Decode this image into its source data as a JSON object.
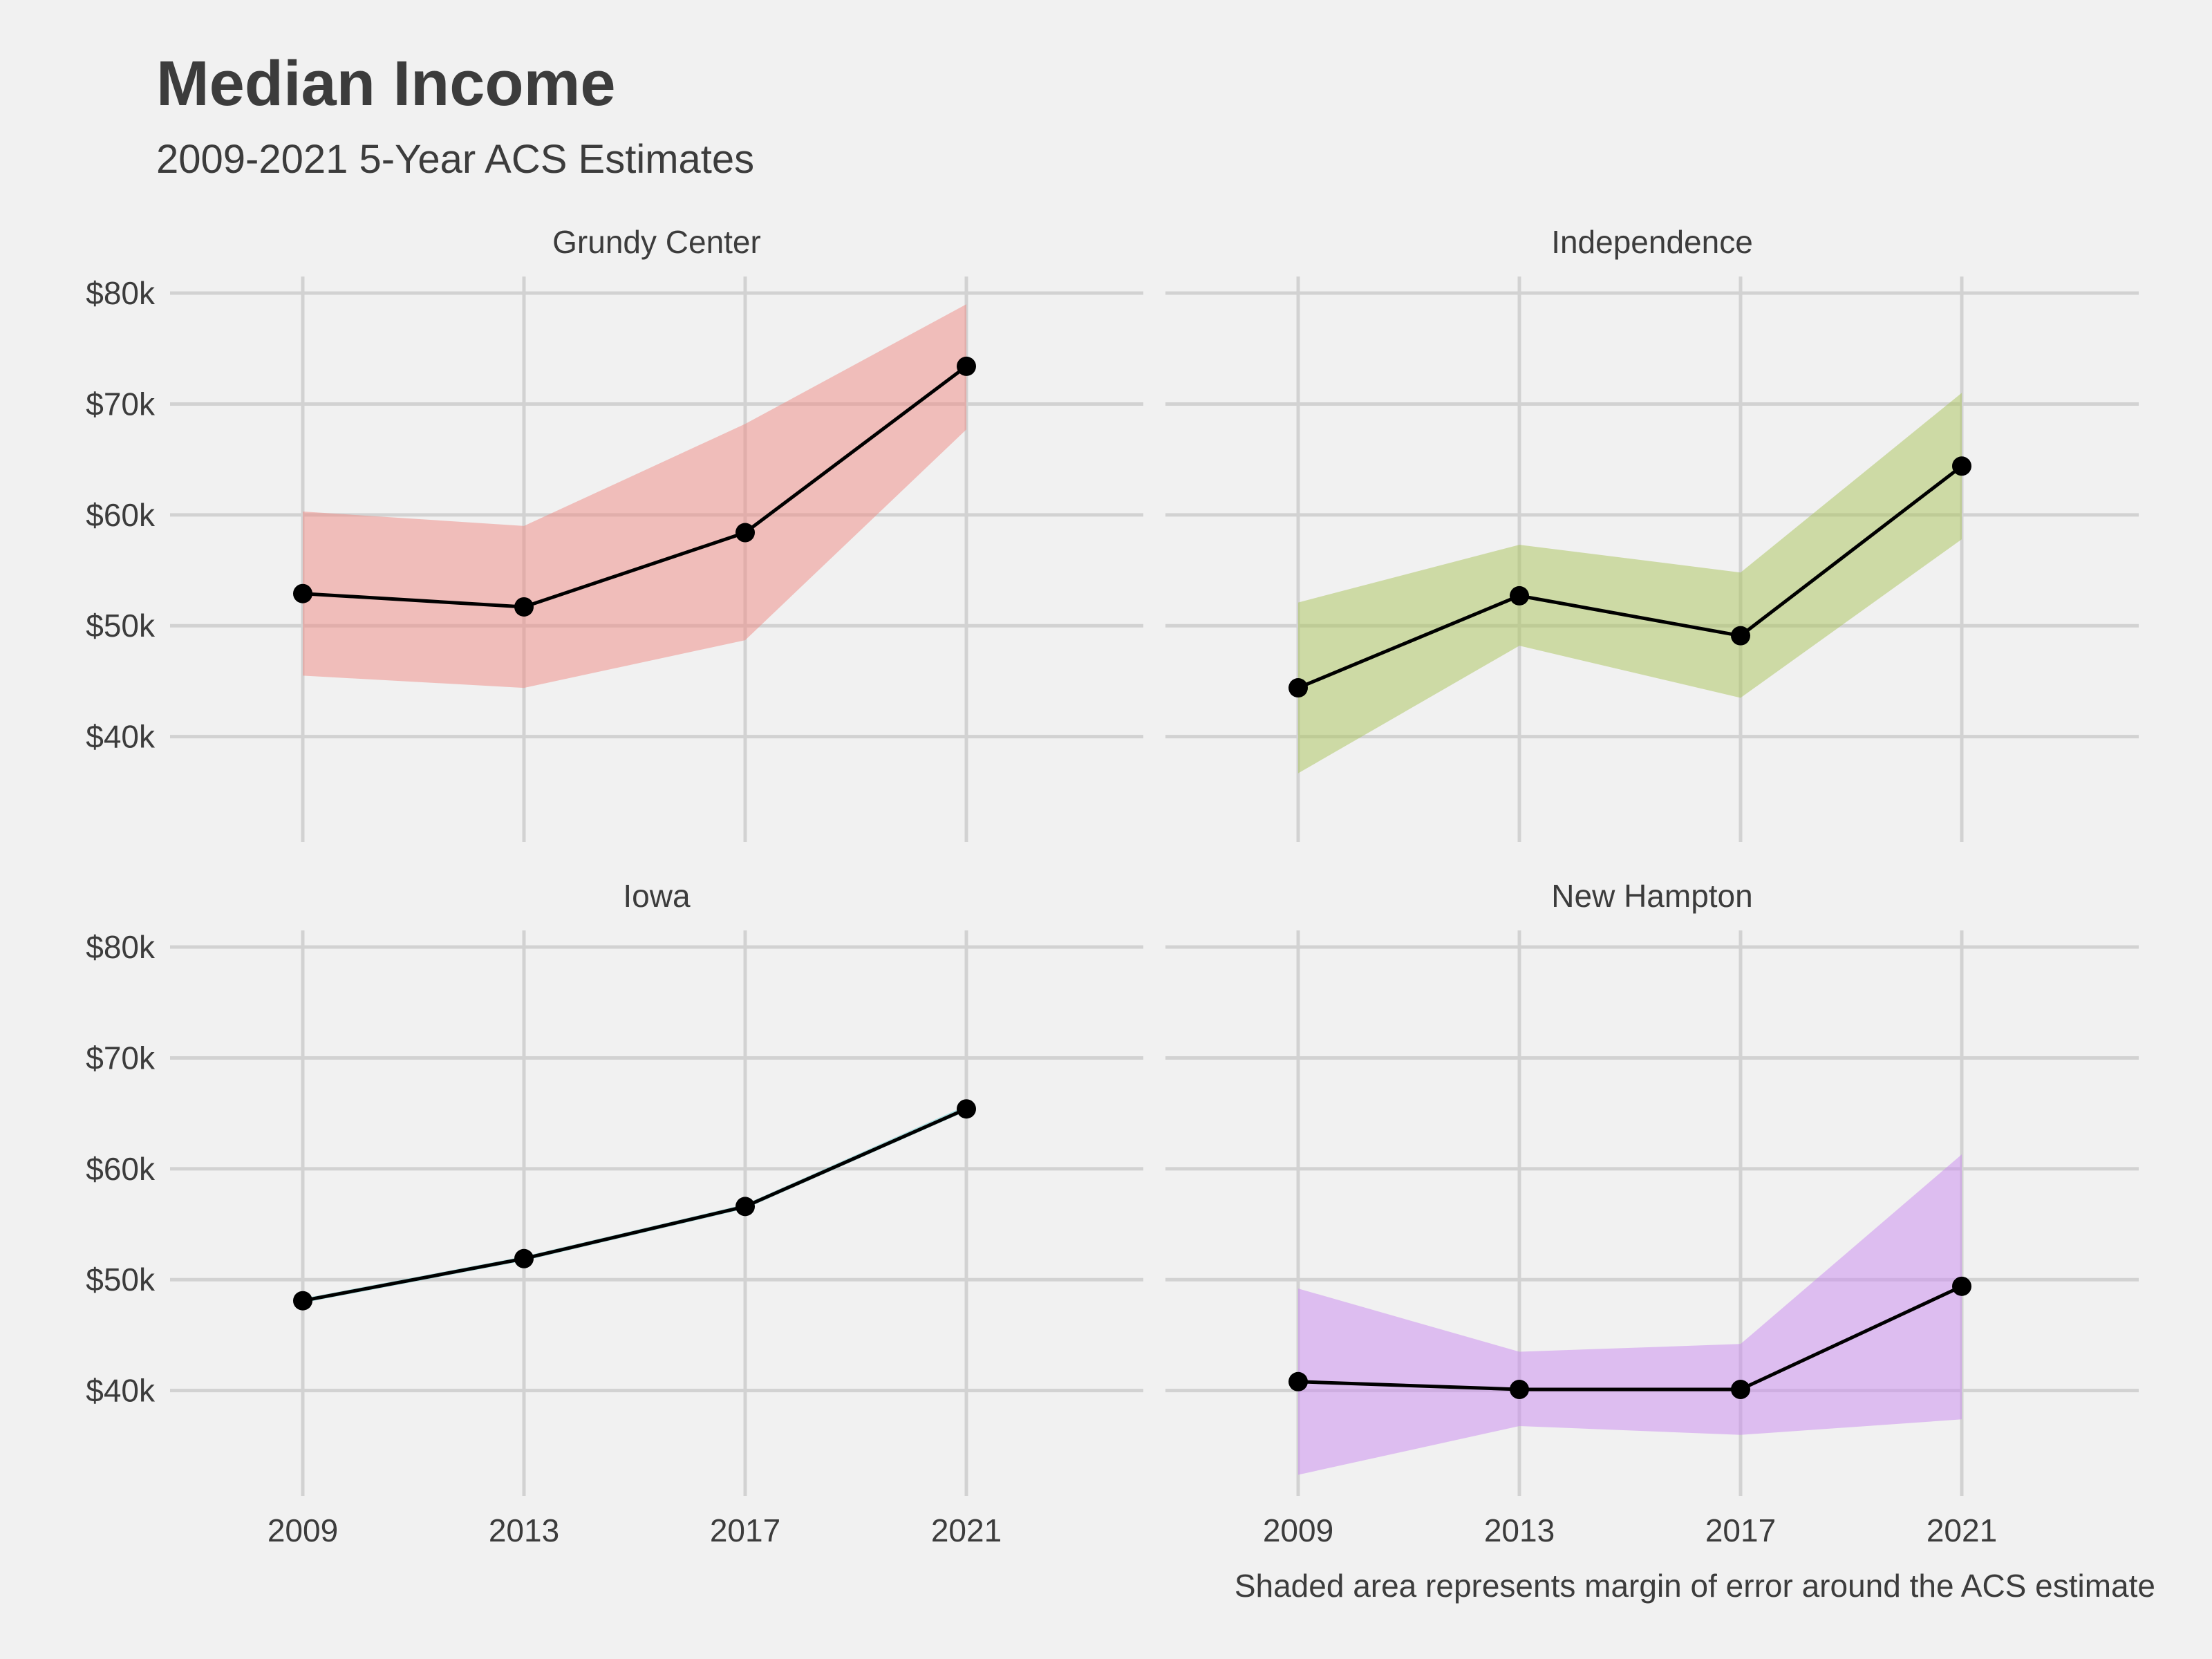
{
  "title": "Median Income",
  "subtitle": "2009-2021 5-Year ACS Estimates",
  "caption": "Shaded area represents margin of error around the ACS estimate",
  "chart_data": {
    "type": "line",
    "facet_layout": "2x2",
    "x": [
      2009,
      2013,
      2017,
      2021
    ],
    "x_ticks": [
      "2009",
      "2013",
      "2017",
      "2021"
    ],
    "xlim": [
      2006.6,
      2024.2
    ],
    "y_ticks": [
      40000,
      50000,
      60000,
      70000,
      80000
    ],
    "y_tick_labels": [
      "$40k",
      "$50k",
      "$60k",
      "$70k",
      "$80k"
    ],
    "ylim": [
      30500,
      81500
    ],
    "grid": true,
    "line_color": "#000000",
    "point_color": "#000000",
    "panels": [
      {
        "name": "Grundy Center",
        "color": "#f08a84",
        "estimate": [
          52900,
          51700,
          58400,
          73400
        ],
        "lower": [
          45500,
          44400,
          48700,
          67700
        ],
        "upper": [
          60300,
          59000,
          68200,
          79000
        ]
      },
      {
        "name": "Independence",
        "color": "#a9c45a",
        "estimate": [
          44400,
          52700,
          49100,
          64400
        ],
        "lower": [
          36700,
          48200,
          43500,
          57800
        ],
        "upper": [
          52100,
          57300,
          54800,
          71000
        ]
      },
      {
        "name": "Iowa",
        "color": "#5fc7cc",
        "estimate": [
          48100,
          51900,
          56600,
          65400
        ],
        "lower": [
          47900,
          51700,
          56400,
          65200
        ],
        "upper": [
          48300,
          52100,
          56800,
          65700
        ]
      },
      {
        "name": "New Hampton",
        "color": "#c98af0",
        "estimate": [
          40800,
          40100,
          40100,
          49400
        ],
        "lower": [
          32400,
          36800,
          36000,
          37400
        ],
        "upper": [
          49200,
          43500,
          44200,
          61300
        ]
      }
    ]
  }
}
